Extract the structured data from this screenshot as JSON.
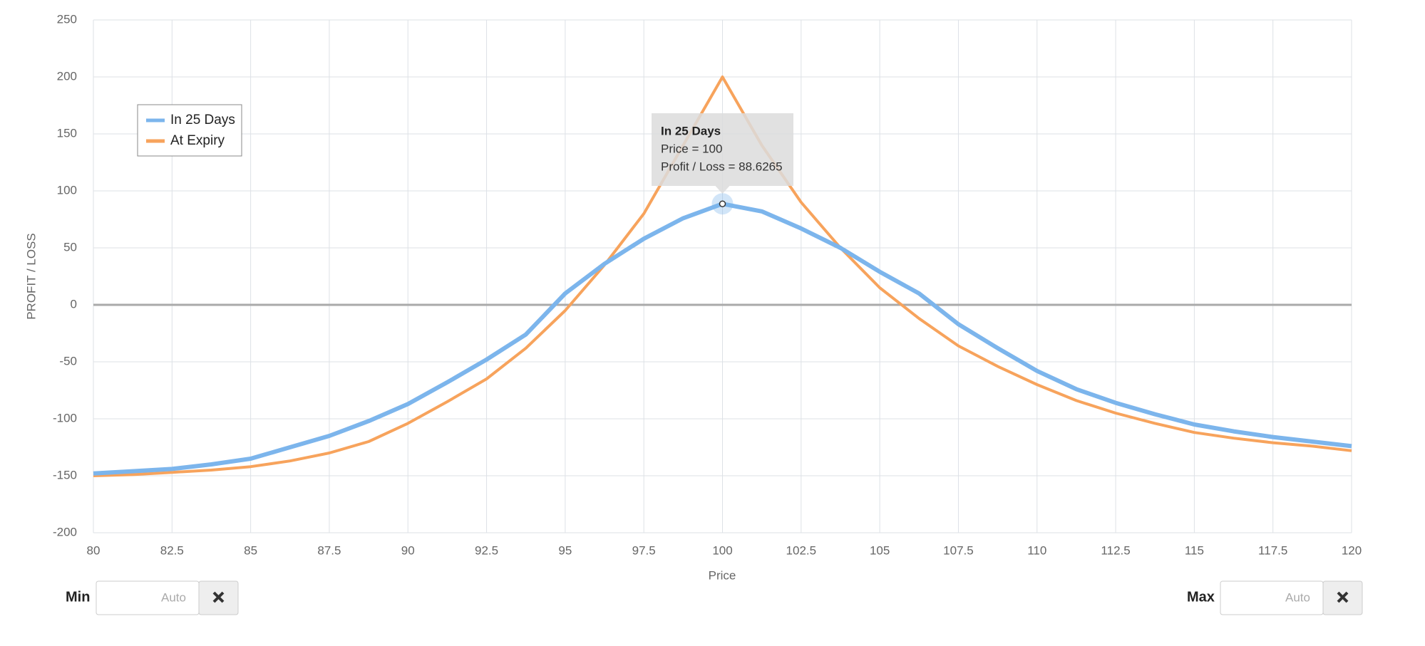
{
  "chart_data": {
    "type": "line",
    "ylabel": "PROFIT / LOSS",
    "xlabel": "Price",
    "x": [
      80,
      81.25,
      82.5,
      83.75,
      85,
      86.25,
      87.5,
      88.75,
      90,
      91.25,
      92.5,
      93.75,
      95,
      96.25,
      97.5,
      98.75,
      100,
      101.25,
      102.5,
      103.75,
      105,
      106.25,
      107.5,
      108.75,
      110,
      111.25,
      112.5,
      113.75,
      115,
      116.25,
      117.5,
      118.75,
      120
    ],
    "series": [
      {
        "name": "In 25 Days",
        "color": "#7cb5ec",
        "values": [
          -148,
          -146,
          -144,
          -140,
          -135,
          -125,
          -115,
          -102,
          -87,
          -68,
          -48,
          -26,
          10,
          36,
          58,
          76,
          88.6265,
          82,
          67,
          50,
          29,
          10,
          -17,
          -38,
          -58,
          -74,
          -86,
          -96,
          -105,
          -111,
          -116,
          -120,
          -124
        ]
      },
      {
        "name": "At Expiry",
        "color": "#f7a35c",
        "values": [
          -150,
          -149,
          -147,
          -145,
          -142,
          -137,
          -130,
          -120,
          -104,
          -85,
          -65,
          -38,
          -5,
          35,
          80,
          140,
          200,
          140,
          90,
          50,
          15,
          -12,
          -36,
          -54,
          -70,
          -84,
          -95,
          -104,
          -112,
          -117,
          -121,
          -124,
          -128
        ]
      }
    ],
    "xlim": [
      80,
      120
    ],
    "xticks": [
      80,
      82.5,
      85,
      87.5,
      90,
      92.5,
      95,
      97.5,
      100,
      102.5,
      105,
      107.5,
      110,
      112.5,
      115,
      117.5,
      120
    ],
    "ylim": [
      -200,
      250
    ],
    "yticks": [
      -200,
      -150,
      -100,
      -50,
      0,
      50,
      100,
      150,
      200,
      250
    ],
    "grid": true,
    "legend": "upper-left",
    "tooltip": {
      "title": "In 25 Days",
      "lines": [
        "Price = 100",
        "Profit / Loss = 88.6265"
      ]
    }
  },
  "controls": {
    "min_label": "Min",
    "min_placeholder": "Auto",
    "max_label": "Max",
    "max_placeholder": "Auto"
  }
}
